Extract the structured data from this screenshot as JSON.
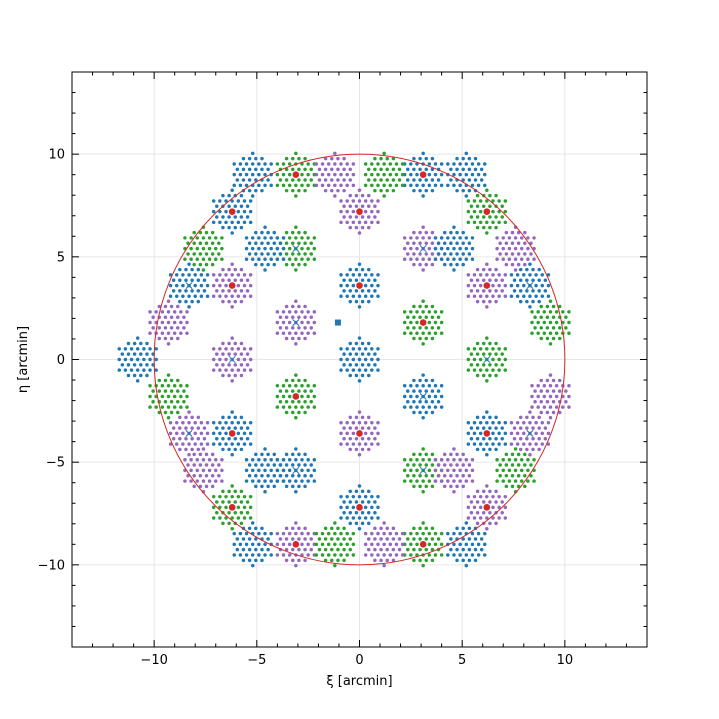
{
  "chart_data": {
    "type": "scatter",
    "title": "",
    "xlabel": "ξ [arcmin]",
    "ylabel": "η [arcmin]",
    "xlim": [
      -14,
      14
    ],
    "ylim": [
      -14,
      14
    ],
    "grid": true,
    "x_ticks": [
      -10,
      -5,
      0,
      5,
      10
    ],
    "y_ticks": [
      -10,
      -5,
      0,
      5,
      10
    ],
    "x_tick_labels": [
      "−10",
      "−5",
      "0",
      "5",
      "10"
    ],
    "y_tick_labels": [
      "−10",
      "−5",
      "0",
      "5",
      "10"
    ],
    "minor_tick_step": 1,
    "boundary_circle": {
      "center": [
        0,
        0
      ],
      "radius": 10,
      "color": "#d62728"
    },
    "pattern": {
      "cell_radius": 1.2,
      "dot_spacing": 0.3,
      "dot_radius_units": 0.085
    },
    "series_colors": {
      "blue": "#1f77b4",
      "green": "#2ca02c",
      "purple": "#9467bd",
      "red": "#d62728"
    },
    "cells": [
      {
        "x": 0,
        "y": 0,
        "color": "blue"
      },
      {
        "x": 3.1,
        "y": 1.8,
        "color": "green"
      },
      {
        "x": 3.1,
        "y": -1.8,
        "color": "blue"
      },
      {
        "x": -3.1,
        "y": 1.8,
        "color": "purple"
      },
      {
        "x": -3.1,
        "y": -1.8,
        "color": "green"
      },
      {
        "x": 0,
        "y": 3.6,
        "color": "blue"
      },
      {
        "x": 0,
        "y": -3.6,
        "color": "purple"
      },
      {
        "x": 6.2,
        "y": 0,
        "color": "green"
      },
      {
        "x": -6.2,
        "y": 0,
        "color": "purple"
      },
      {
        "x": 6.2,
        "y": 3.6,
        "color": "purple"
      },
      {
        "x": 6.2,
        "y": -3.6,
        "color": "blue"
      },
      {
        "x": -6.2,
        "y": 3.6,
        "color": "purple"
      },
      {
        "x": -6.2,
        "y": -3.6,
        "color": "blue"
      },
      {
        "x": 3.1,
        "y": 5.4,
        "color": "purple"
      },
      {
        "x": -3.1,
        "y": 5.4,
        "color": "green"
      },
      {
        "x": 3.1,
        "y": -5.4,
        "color": "green"
      },
      {
        "x": -3.1,
        "y": -5.4,
        "color": "blue"
      },
      {
        "x": 0,
        "y": 7.2,
        "color": "purple"
      },
      {
        "x": 0,
        "y": -7.2,
        "color": "blue"
      },
      {
        "x": 6.2,
        "y": 7.2,
        "color": "green"
      },
      {
        "x": -6.2,
        "y": 7.2,
        "color": "blue"
      },
      {
        "x": 6.2,
        "y": -7.2,
        "color": "purple"
      },
      {
        "x": -6.2,
        "y": -7.2,
        "color": "green"
      },
      {
        "x": 9.3,
        "y": 1.8,
        "color": "green"
      },
      {
        "x": 9.3,
        "y": -1.8,
        "color": "purple"
      },
      {
        "x": -9.3,
        "y": 1.8,
        "color": "purple"
      },
      {
        "x": -9.3,
        "y": -1.8,
        "color": "green"
      },
      {
        "x": 8.3,
        "y": 3.6,
        "color": "blue"
      },
      {
        "x": -8.3,
        "y": 3.6,
        "color": "blue"
      },
      {
        "x": 8.3,
        "y": -3.6,
        "color": "purple"
      },
      {
        "x": -8.3,
        "y": -3.6,
        "color": "purple"
      },
      {
        "x": 3.1,
        "y": 9.0,
        "color": "blue"
      },
      {
        "x": -3.1,
        "y": 9.0,
        "color": "green"
      },
      {
        "x": 3.1,
        "y": -9.0,
        "color": "green"
      },
      {
        "x": -3.1,
        "y": -9.0,
        "color": "purple"
      },
      {
        "x": 5.2,
        "y": 9.0,
        "color": "blue"
      },
      {
        "x": -5.2,
        "y": 9.0,
        "color": "blue"
      },
      {
        "x": 5.2,
        "y": -9.0,
        "color": "blue"
      },
      {
        "x": -5.2,
        "y": -9.0,
        "color": "blue"
      },
      {
        "x": -1.2,
        "y": 9.0,
        "color": "purple"
      },
      {
        "x": 1.2,
        "y": 9.0,
        "color": "green"
      },
      {
        "x": -1.2,
        "y": -9.0,
        "color": "green"
      },
      {
        "x": 1.2,
        "y": -9.0,
        "color": "purple"
      },
      {
        "x": -10.8,
        "y": 0,
        "color": "blue"
      },
      {
        "x": 7.6,
        "y": 5.4,
        "color": "purple"
      },
      {
        "x": -7.6,
        "y": 5.4,
        "color": "green"
      },
      {
        "x": 7.6,
        "y": -5.4,
        "color": "green"
      },
      {
        "x": -7.6,
        "y": -5.4,
        "color": "purple"
      },
      {
        "x": 4.6,
        "y": 5.4,
        "color": "blue"
      },
      {
        "x": -4.6,
        "y": 5.4,
        "color": "blue"
      },
      {
        "x": 4.6,
        "y": -5.4,
        "color": "purple"
      },
      {
        "x": -4.6,
        "y": -5.4,
        "color": "blue"
      }
    ],
    "red_points": [
      [
        -3.1,
        9.0
      ],
      [
        3.1,
        9.0
      ],
      [
        -6.2,
        7.2
      ],
      [
        0,
        7.2
      ],
      [
        6.2,
        7.2
      ],
      [
        -6.2,
        3.6
      ],
      [
        0,
        3.6
      ],
      [
        6.2,
        3.6
      ],
      [
        3.1,
        1.8
      ],
      [
        -3.1,
        -1.8
      ],
      [
        -6.2,
        -3.6
      ],
      [
        0,
        -3.6
      ],
      [
        6.2,
        -3.6
      ],
      [
        -6.2,
        -7.2
      ],
      [
        0,
        -7.2
      ],
      [
        6.2,
        -7.2
      ],
      [
        -3.1,
        -9.0
      ],
      [
        3.1,
        -9.0
      ]
    ],
    "x_markers": [
      [
        -8.3,
        3.6
      ],
      [
        -3.1,
        5.4
      ],
      [
        3.1,
        5.4
      ],
      [
        8.3,
        3.6
      ],
      [
        -3.1,
        1.8
      ],
      [
        -6.2,
        0
      ],
      [
        6.2,
        0
      ],
      [
        3.1,
        -1.8
      ],
      [
        -3.1,
        -5.4
      ],
      [
        3.1,
        -5.4
      ],
      [
        -8.3,
        -3.6
      ],
      [
        8.3,
        -3.6
      ]
    ],
    "square_marker": [
      -1.05,
      1.8
    ]
  }
}
